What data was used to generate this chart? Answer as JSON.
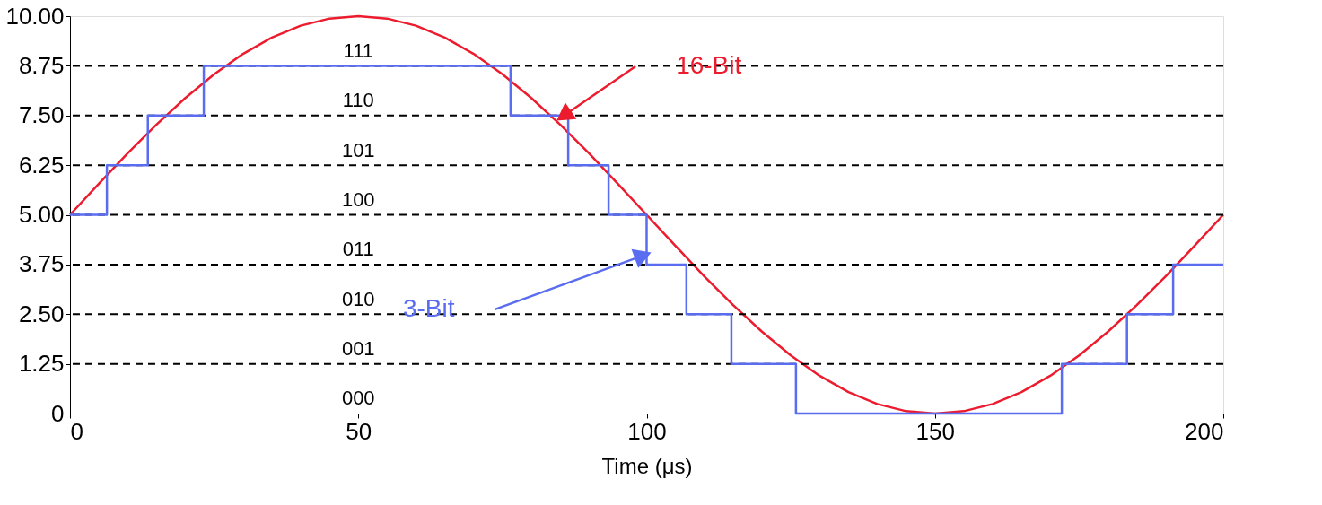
{
  "chart_data": {
    "type": "line",
    "xlabel": "Time (μs)",
    "xlim": [
      0,
      200
    ],
    "xticks": [
      0,
      50,
      100,
      150,
      200
    ],
    "ylim": [
      0,
      10
    ],
    "yticks": [
      0,
      1.25,
      {
        "value": 2.5,
        "label": "2.50"
      },
      3.75,
      {
        "value": 5,
        "label": "5.00"
      },
      6.25,
      {
        "value": 7.5,
        "label": "7.50"
      },
      8.75,
      {
        "value": 10,
        "label": "10.00"
      }
    ],
    "grid": false,
    "marker": "none",
    "series": [
      {
        "name": "16-Bit",
        "color": "#ec1c2e",
        "x": [
          0,
          5,
          10,
          15,
          20,
          25,
          30,
          35,
          40,
          45,
          50,
          55,
          60,
          65,
          70,
          75,
          80,
          85,
          90,
          95,
          100,
          105,
          110,
          115,
          120,
          125,
          130,
          135,
          140,
          145,
          150,
          155,
          160,
          165,
          170,
          175,
          180,
          185,
          190,
          195,
          200
        ],
        "values": [
          5,
          5.78,
          6.55,
          7.27,
          7.94,
          8.54,
          9.05,
          9.46,
          9.76,
          9.94,
          10,
          9.94,
          9.76,
          9.46,
          9.05,
          8.54,
          7.94,
          7.27,
          6.55,
          5.78,
          5,
          4.22,
          3.45,
          2.73,
          2.06,
          1.46,
          0.95,
          0.54,
          0.24,
          0.06,
          0,
          0.06,
          0.24,
          0.54,
          0.95,
          1.46,
          2.06,
          2.73,
          3.45,
          4.22,
          5
        ]
      },
      {
        "name": "3-Bit",
        "type": "step",
        "color": "#5a6cf0",
        "x": [
          0,
          6.4,
          13.5,
          23.2,
          76.4,
          86.4,
          93.4,
          100,
          106.9,
          114.7,
          125.9,
          172,
          183.3,
          191.3,
          200
        ],
        "values": [
          5,
          6.25,
          7.5,
          8.75,
          7.5,
          6.25,
          5,
          3.75,
          2.5,
          1.25,
          0,
          1.25,
          2.5,
          3.75,
          3.75
        ]
      }
    ],
    "ref_lines": [
      {
        "axis": "y",
        "value": 1.25,
        "color": "#000000",
        "line_style": "dashed"
      },
      {
        "axis": "y",
        "value": 2.5,
        "color": "#000000",
        "line_style": "dashed"
      },
      {
        "axis": "y",
        "value": 3.75,
        "color": "#000000",
        "line_style": "dashed"
      },
      {
        "axis": "y",
        "value": 5,
        "color": "#000000",
        "line_style": "dashed"
      },
      {
        "axis": "y",
        "value": 6.25,
        "color": "#000000",
        "line_style": "dashed"
      },
      {
        "axis": "y",
        "value": 7.5,
        "color": "#000000",
        "line_style": "dashed"
      },
      {
        "axis": "y",
        "value": 8.75,
        "color": "#000000",
        "line_style": "dashed"
      }
    ],
    "annotations": [
      "000",
      "001",
      "010",
      "011",
      "100",
      "101",
      "110",
      "111"
    ]
  }
}
